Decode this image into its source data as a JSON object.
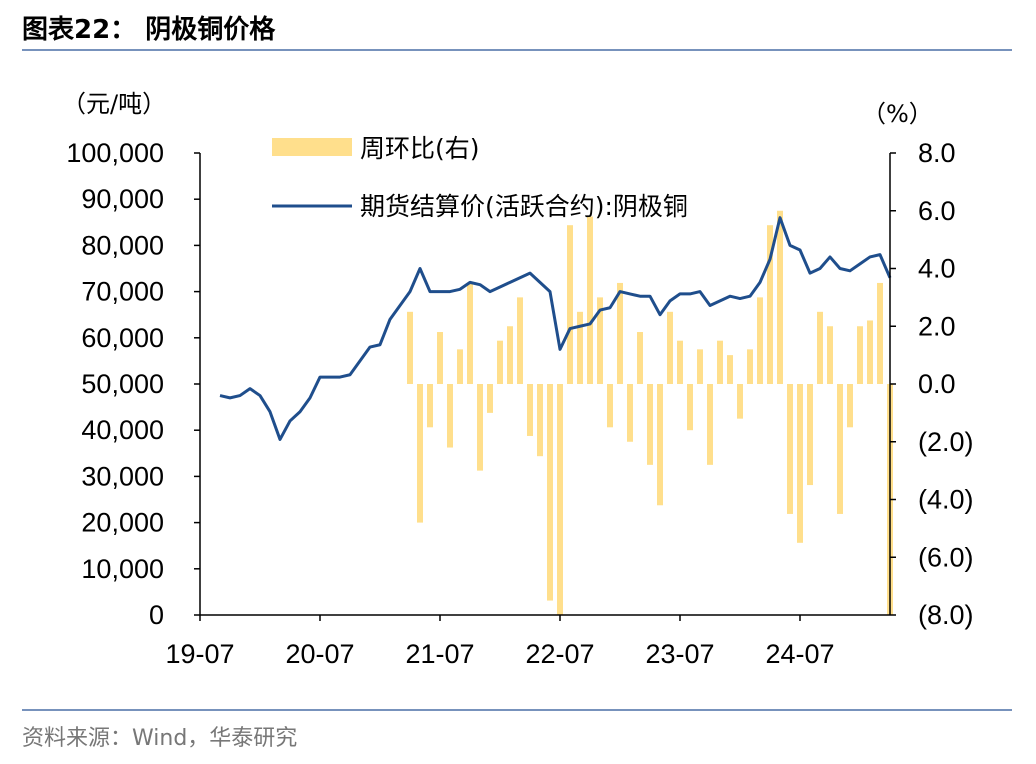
{
  "chart_data": {
    "type": "bar-line",
    "title": "图表22： 阴极铜价格",
    "source": "资料来源：Wind，华泰研究",
    "y_label": "（元/吨）",
    "y2_label": "（%）",
    "x": [
      "19-09",
      "19-10",
      "19-11",
      "19-12",
      "20-01",
      "20-02",
      "20-03",
      "20-04",
      "20-05",
      "20-06",
      "20-07",
      "20-08",
      "20-09",
      "20-10",
      "20-11",
      "20-12",
      "21-01",
      "21-02",
      "21-03",
      "21-04",
      "21-05",
      "21-06",
      "21-07",
      "21-08",
      "21-09",
      "21-10",
      "21-11",
      "21-12",
      "22-01",
      "22-02",
      "22-03",
      "22-04",
      "22-05",
      "22-06",
      "22-07",
      "22-08",
      "22-09",
      "22-10",
      "22-11",
      "22-12",
      "23-01",
      "23-02",
      "23-03",
      "23-04",
      "23-05",
      "23-06",
      "23-07",
      "23-08",
      "23-09",
      "23-10",
      "23-11",
      "23-12",
      "24-01",
      "24-02",
      "24-03",
      "24-04",
      "24-05",
      "24-06",
      "24-07",
      "24-08",
      "24-09",
      "24-10",
      "24-11",
      "24-12",
      "25-01",
      "25-02",
      "25-03",
      "25-04"
    ],
    "xlim": [
      "19-07",
      "25-04"
    ],
    "xticks": [
      "19-07",
      "20-07",
      "21-07",
      "22-07",
      "23-07",
      "24-07"
    ],
    "ylim": [
      0,
      100000
    ],
    "yticks": [
      0,
      {
        "value": 10000,
        "label": "10,000"
      },
      {
        "value": 20000,
        "label": "20,000"
      },
      {
        "value": 30000,
        "label": "30,000"
      },
      {
        "value": 40000,
        "label": "40,000"
      },
      {
        "value": 50000,
        "label": "50,000"
      },
      {
        "value": 60000,
        "label": "60,000"
      },
      {
        "value": 70000,
        "label": "70,000"
      },
      {
        "value": 80000,
        "label": "80,000"
      },
      {
        "value": 90000,
        "label": "90,000"
      },
      {
        "value": 100000,
        "label": "100,000"
      }
    ],
    "y2lim": [
      -8,
      8
    ],
    "y2ticks": [
      {
        "value": -8,
        "label": "(8.0)"
      },
      {
        "value": -6,
        "label": "(6.0)"
      },
      {
        "value": -4,
        "label": "(4.0)"
      },
      {
        "value": -2,
        "label": "(2.0)"
      },
      {
        "value": 0,
        "label": "0.0"
      },
      {
        "value": 2,
        "label": "2.0"
      },
      {
        "value": 4,
        "label": "4.0"
      },
      {
        "value": 6,
        "label": "6.0"
      },
      {
        "value": 8,
        "label": "8.0"
      }
    ],
    "series": [
      {
        "name": "周环比(右)",
        "type": "bar",
        "axis": "y2",
        "color": "#ffdf8c",
        "values": [
          null,
          null,
          null,
          null,
          null,
          null,
          null,
          null,
          null,
          null,
          null,
          null,
          null,
          null,
          null,
          null,
          null,
          null,
          null,
          2.5,
          -4.8,
          -1.5,
          1.8,
          -2.2,
          1.2,
          3.5,
          -3.0,
          -1.0,
          1.5,
          2.0,
          3.0,
          -1.8,
          -2.5,
          -7.5,
          -8.0,
          5.5,
          2.5,
          5.8,
          3.0,
          -1.5,
          3.5,
          -2.0,
          1.8,
          -2.8,
          -4.2,
          2.5,
          1.5,
          -1.6,
          1.2,
          -2.8,
          1.5,
          1.0,
          -1.2,
          1.2,
          3.0,
          5.5,
          6.0,
          -4.5,
          -5.5,
          -3.5,
          2.5,
          2.0,
          -4.5,
          -1.5,
          2.0,
          2.2,
          3.5,
          -8.0
        ]
      },
      {
        "name": "期货结算价(活跃合约):阴极铜",
        "type": "line",
        "axis": "y",
        "color": "#1f4e8c",
        "values": [
          47500,
          47000,
          47500,
          49000,
          47500,
          44000,
          38000,
          42000,
          44000,
          47000,
          51500,
          51500,
          51500,
          52000,
          55000,
          58000,
          58500,
          64000,
          67000,
          70000,
          75000,
          70000,
          70000,
          70000,
          70500,
          72000,
          71500,
          70000,
          71000,
          72000,
          73000,
          74000,
          72000,
          70000,
          57500,
          62000,
          62500,
          63000,
          66000,
          66500,
          70000,
          69500,
          69000,
          69000,
          65000,
          68000,
          69500,
          69500,
          70000,
          67000,
          68000,
          69000,
          68500,
          69000,
          72000,
          77000,
          86000,
          80000,
          79000,
          74000,
          75000,
          77500,
          75000,
          74500,
          76000,
          77500,
          78000,
          73000
        ]
      }
    ]
  }
}
